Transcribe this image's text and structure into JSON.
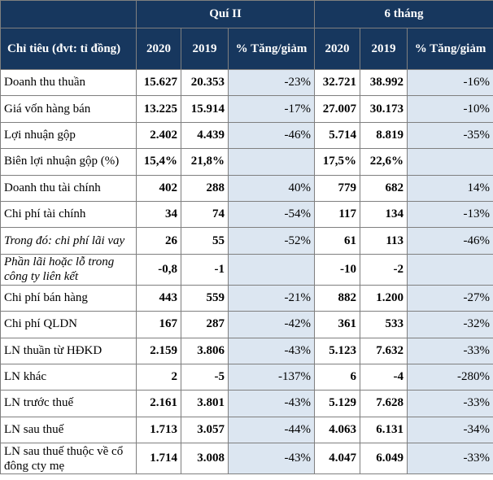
{
  "header": {
    "group_q2": "Quí II",
    "group_6m": "6 tháng",
    "col_label": "Chỉ tiêu (đvt: tỉ đồng)",
    "year_2020": "2020",
    "year_2019": "2019",
    "pct_change": "% Tăng/giảm"
  },
  "rows": [
    {
      "label": "Doanh thu thuần",
      "q2_2020": "15.627",
      "q2_2019": "20.353",
      "q2_pct": "-23%",
      "h6_2020": "32.721",
      "h6_2019": "38.992",
      "h6_pct": "-16%"
    },
    {
      "label": "Giá vốn hàng bán",
      "q2_2020": "13.225",
      "q2_2019": "15.914",
      "q2_pct": "-17%",
      "h6_2020": "27.007",
      "h6_2019": "30.173",
      "h6_pct": "-10%"
    },
    {
      "label": "Lợi nhuận gộp",
      "q2_2020": "2.402",
      "q2_2019": "4.439",
      "q2_pct": "-46%",
      "h6_2020": "5.714",
      "h6_2019": "8.819",
      "h6_pct": "-35%"
    },
    {
      "label": "Biên lợi nhuận gộp (%)",
      "q2_2020": "15,4%",
      "q2_2019": "21,8%",
      "q2_pct": "",
      "h6_2020": "17,5%",
      "h6_2019": "22,6%",
      "h6_pct": ""
    },
    {
      "label": "Doanh thu tài chính",
      "q2_2020": "402",
      "q2_2019": "288",
      "q2_pct": "40%",
      "h6_2020": "779",
      "h6_2019": "682",
      "h6_pct": "14%"
    },
    {
      "label": "Chi phí tài chính",
      "q2_2020": "34",
      "q2_2019": "74",
      "q2_pct": "-54%",
      "h6_2020": "117",
      "h6_2019": "134",
      "h6_pct": "-13%"
    },
    {
      "label": "Trong đó: chi phí lãi vay",
      "q2_2020": "26",
      "q2_2019": "55",
      "q2_pct": "-52%",
      "h6_2020": "61",
      "h6_2019": "113",
      "h6_pct": "-46%"
    },
    {
      "label": "Phần lãi hoặc lỗ trong công ty liên kết",
      "q2_2020": "-0,8",
      "q2_2019": "-1",
      "q2_pct": "",
      "h6_2020": "-10",
      "h6_2019": "-2",
      "h6_pct": ""
    },
    {
      "label": "Chi phí bán hàng",
      "q2_2020": "443",
      "q2_2019": "559",
      "q2_pct": "-21%",
      "h6_2020": "882",
      "h6_2019": "1.200",
      "h6_pct": "-27%"
    },
    {
      "label": "Chi phí QLDN",
      "q2_2020": "167",
      "q2_2019": "287",
      "q2_pct": "-42%",
      "h6_2020": "361",
      "h6_2019": "533",
      "h6_pct": "-32%"
    },
    {
      "label": "LN thuần từ HĐKD",
      "q2_2020": "2.159",
      "q2_2019": "3.806",
      "q2_pct": "-43%",
      "h6_2020": "5.123",
      "h6_2019": "7.632",
      "h6_pct": "-33%"
    },
    {
      "label": "LN khác",
      "q2_2020": "2",
      "q2_2019": "-5",
      "q2_pct": "-137%",
      "h6_2020": "6",
      "h6_2019": "-4",
      "h6_pct": "-280%"
    },
    {
      "label": "LN trước thuế",
      "q2_2020": "2.161",
      "q2_2019": "3.801",
      "q2_pct": "-43%",
      "h6_2020": "5.129",
      "h6_2019": "7.628",
      "h6_pct": "-33%"
    },
    {
      "label": "LN sau thuế",
      "q2_2020": "1.713",
      "q2_2019": "3.057",
      "q2_pct": "-44%",
      "h6_2020": "4.063",
      "h6_2019": "6.131",
      "h6_pct": "-34%"
    },
    {
      "label": "LN sau thuế thuộc về cổ đông cty mẹ",
      "q2_2020": "1.714",
      "q2_2019": "3.008",
      "q2_pct": "-43%",
      "h6_2020": "4.047",
      "h6_2019": "6.049",
      "h6_pct": "-33%"
    }
  ]
}
